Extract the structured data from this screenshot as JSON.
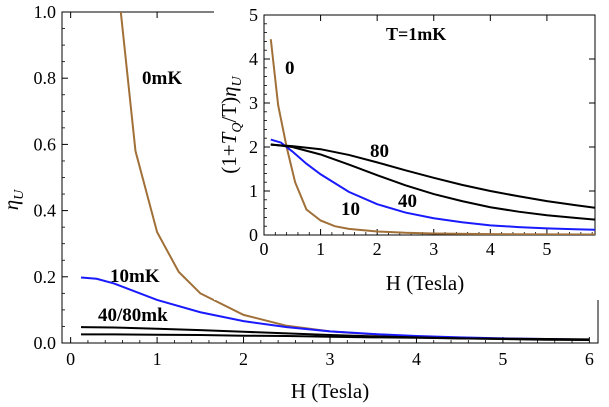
{
  "chart_data": [
    {
      "type": "line",
      "panel": "main",
      "xlabel": "H (Tesla)",
      "ylabel": "η_U",
      "xlim": [
        -0.1,
        6.1
      ],
      "ylim": [
        0.0,
        1.0
      ],
      "xticks": [
        "0",
        "1",
        "2",
        "3",
        "4",
        "5",
        "6"
      ],
      "yticks": [
        "0.0",
        "0.2",
        "0.4",
        "0.6",
        "0.8",
        "1.0"
      ],
      "series": [
        {
          "name": "0mK",
          "color": "#a07038",
          "x": [
            0.58,
            0.75,
            1.0,
            1.25,
            1.5,
            2.0,
            2.5,
            3.0,
            3.5,
            4.0,
            4.5,
            5.0,
            5.5,
            6.0
          ],
          "y": [
            1.0,
            0.58,
            0.335,
            0.215,
            0.15,
            0.085,
            0.052,
            0.035,
            0.026,
            0.02,
            0.016,
            0.013,
            0.011,
            0.01
          ]
        },
        {
          "name": "10mK",
          "color": "#1a1aff",
          "x": [
            0.12,
            0.3,
            0.5,
            1.0,
            1.5,
            2.0,
            2.5,
            3.0,
            3.5,
            4.0,
            4.5,
            5.0,
            5.5,
            6.0
          ],
          "y": [
            0.198,
            0.194,
            0.18,
            0.13,
            0.093,
            0.066,
            0.048,
            0.035,
            0.027,
            0.021,
            0.017,
            0.014,
            0.012,
            0.01
          ]
        },
        {
          "name": "40mK",
          "color": "#000000",
          "x": [
            0.12,
            0.5,
            1.0,
            1.5,
            2.0,
            2.5,
            3.0,
            3.5,
            4.0,
            4.5,
            5.0,
            5.5,
            6.0
          ],
          "y": [
            0.048,
            0.047,
            0.043,
            0.039,
            0.034,
            0.029,
            0.024,
            0.02,
            0.017,
            0.014,
            0.012,
            0.01,
            0.009
          ]
        },
        {
          "name": "80mK",
          "color": "#000000",
          "x": [
            0.12,
            0.5,
            1.0,
            1.5,
            2.0,
            2.5,
            3.0,
            3.5,
            4.0,
            4.5,
            5.0,
            5.5,
            6.0
          ],
          "y": [
            0.026,
            0.026,
            0.025,
            0.024,
            0.022,
            0.021,
            0.019,
            0.017,
            0.016,
            0.014,
            0.013,
            0.012,
            0.011
          ]
        }
      ],
      "annotations": [
        "0mK",
        "10mK",
        "40/80mk"
      ]
    },
    {
      "type": "line",
      "panel": "inset",
      "title": "T=1mK",
      "xlabel": "H (Tesla)",
      "ylabel": "(1+T_Q/T)η_U",
      "xlim": [
        0.0,
        5.85
      ],
      "ylim": [
        0.0,
        5.0
      ],
      "xticks": [
        "0",
        "1",
        "2",
        "3",
        "4",
        "5"
      ],
      "yticks": [
        "0",
        "1",
        "2",
        "3",
        "4",
        "5"
      ],
      "series": [
        {
          "name": "0",
          "color": "#a07038",
          "x": [
            0.12,
            0.25,
            0.4,
            0.55,
            0.75,
            1.0,
            1.25,
            1.5,
            2.0,
            2.5,
            3.0,
            4.0,
            5.0,
            5.85
          ],
          "y": [
            4.45,
            2.95,
            2.0,
            1.2,
            0.58,
            0.33,
            0.2,
            0.14,
            0.08,
            0.05,
            0.035,
            0.02,
            0.013,
            0.01
          ]
        },
        {
          "name": "10",
          "color": "#1a1aff",
          "x": [
            0.12,
            0.3,
            0.5,
            0.75,
            1.0,
            1.5,
            2.0,
            2.5,
            3.0,
            3.5,
            4.0,
            4.5,
            5.0,
            5.5,
            5.85
          ],
          "y": [
            2.17,
            2.1,
            1.9,
            1.62,
            1.38,
            0.98,
            0.7,
            0.51,
            0.38,
            0.29,
            0.22,
            0.18,
            0.15,
            0.13,
            0.12
          ]
        },
        {
          "name": "40",
          "color": "#000000",
          "x": [
            0.12,
            0.5,
            1.0,
            1.5,
            2.0,
            2.5,
            3.0,
            3.5,
            4.0,
            4.5,
            5.0,
            5.5,
            5.85
          ],
          "y": [
            2.06,
            2.0,
            1.83,
            1.6,
            1.36,
            1.13,
            0.93,
            0.77,
            0.63,
            0.53,
            0.45,
            0.39,
            0.35
          ]
        },
        {
          "name": "80",
          "color": "#000000",
          "x": [
            0.12,
            0.5,
            1.0,
            1.5,
            2.0,
            2.5,
            3.0,
            3.5,
            4.0,
            4.5,
            5.0,
            5.5,
            5.85
          ],
          "y": [
            2.05,
            2.02,
            1.95,
            1.82,
            1.65,
            1.47,
            1.3,
            1.14,
            1.0,
            0.88,
            0.77,
            0.68,
            0.62
          ]
        }
      ],
      "annotations": [
        "0",
        "10",
        "40",
        "80"
      ]
    }
  ]
}
